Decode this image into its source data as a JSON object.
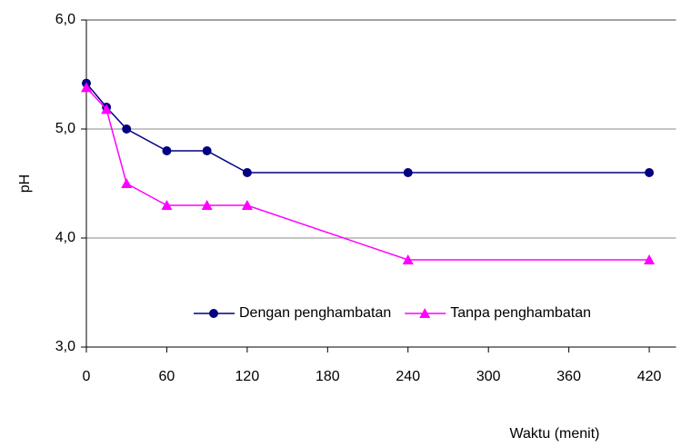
{
  "chart_data": {
    "type": "line",
    "x_label": "Waktu (menit)",
    "y_label": "pH",
    "x": [
      0,
      15,
      30,
      60,
      90,
      120,
      240,
      420
    ],
    "series": [
      {
        "name": "Dengan penghambatan",
        "color": "#000080",
        "marker": "circle",
        "values": [
          5.42,
          5.2,
          5.0,
          4.8,
          4.8,
          4.6,
          4.6,
          4.6
        ]
      },
      {
        "name": "Tanpa penghambatan",
        "color": "#ff00ff",
        "marker": "triangle",
        "values": [
          5.38,
          5.18,
          4.5,
          4.3,
          4.3,
          4.3,
          3.8,
          3.8
        ]
      }
    ],
    "xlim": [
      0,
      440
    ],
    "xticks": [
      0,
      60,
      120,
      180,
      240,
      300,
      360,
      420
    ],
    "ylim": [
      3,
      6
    ],
    "yticks": [
      {
        "value": 3,
        "label": "3,0"
      },
      {
        "value": 4,
        "label": "4,0"
      },
      {
        "value": 5,
        "label": "5,0"
      },
      {
        "value": 6,
        "label": "6,0"
      }
    ],
    "grid": true,
    "legend_position": "lower right"
  }
}
